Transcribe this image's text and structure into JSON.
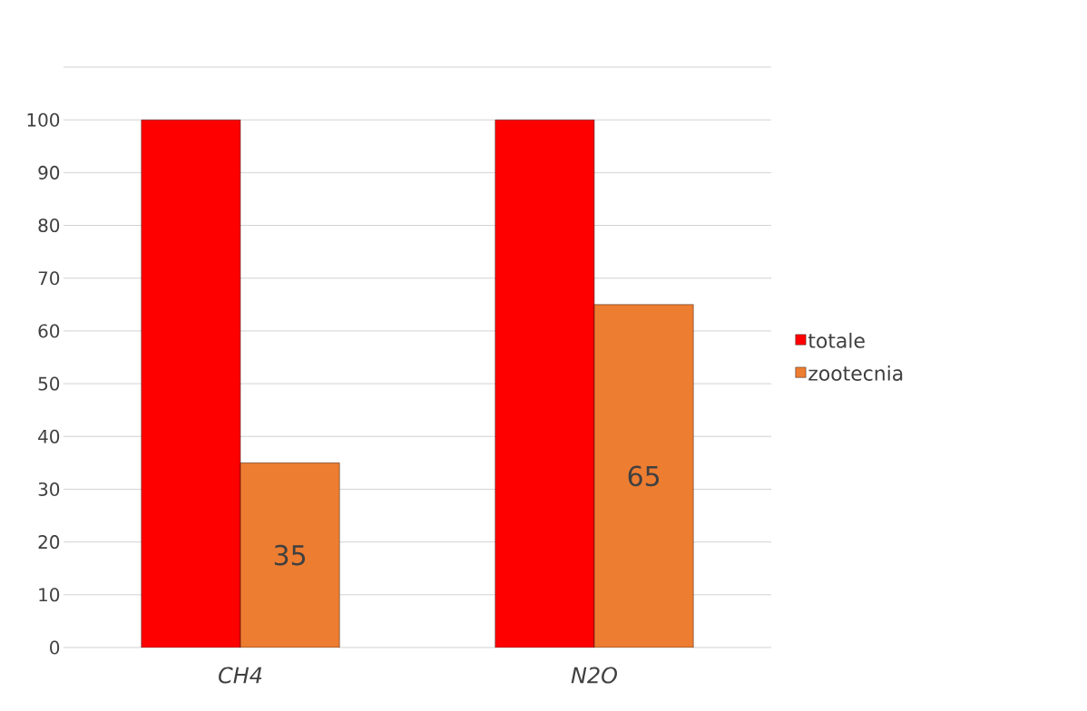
{
  "chart_data": {
    "type": "bar",
    "categories": [
      "CH4",
      "N2O"
    ],
    "series": [
      {
        "name": "totale",
        "color": "#ff0000",
        "values": [
          100,
          100
        ]
      },
      {
        "name": "zootecnia",
        "color": "#ed7d31",
        "values": [
          35,
          65
        ],
        "value_labels": [
          "35",
          "65"
        ]
      }
    ],
    "ylim": [
      0,
      110
    ],
    "yticks": [
      0,
      10,
      20,
      30,
      40,
      50,
      60,
      70,
      80,
      90,
      100,
      {
        "value": 110,
        "label": null
      }
    ],
    "grid": "y",
    "legend": "right"
  }
}
